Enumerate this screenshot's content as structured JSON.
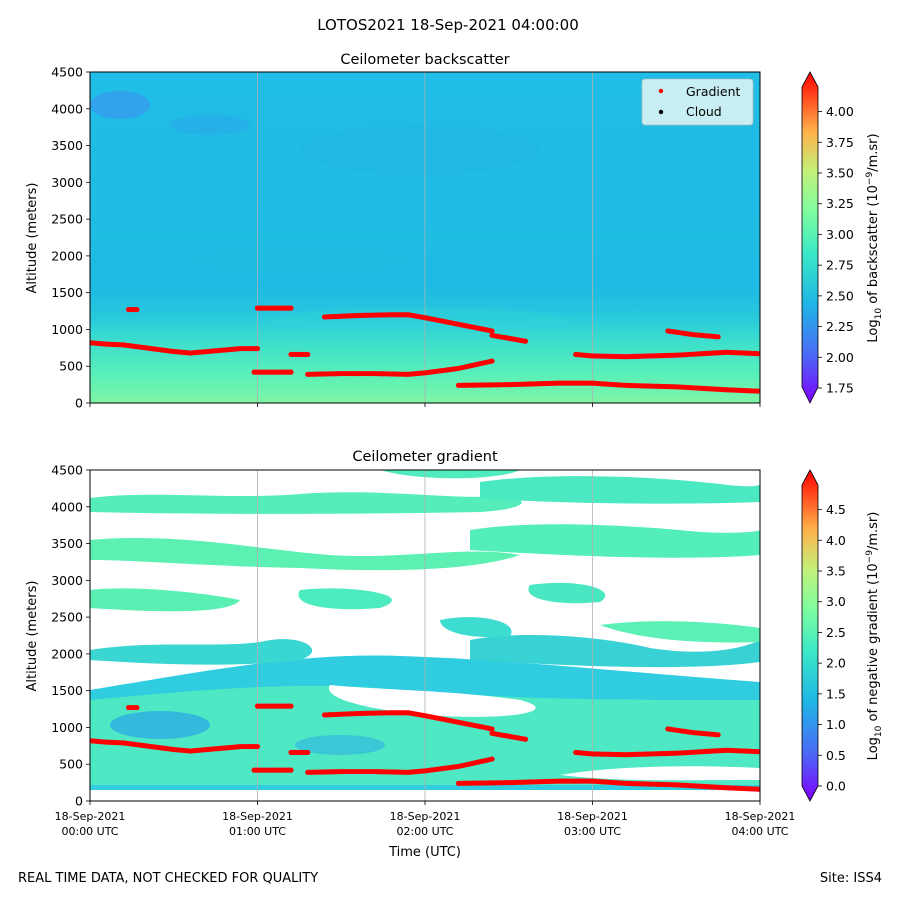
{
  "figure": {
    "title": "LOTOS2021 18-Sep-2021 04:00:00",
    "footer_left": "REAL TIME DATA, NOT CHECKED FOR QUALITY",
    "footer_right": "Site: ISS4"
  },
  "colors": {
    "cloud_points": "#ff0000",
    "field_low": "#2ac1e3",
    "field_high": "#5cf3b8",
    "grid": "#b0b0b0"
  },
  "chart_data": [
    {
      "type": "heatmap",
      "title": "Ceilometer backscatter",
      "xlabel": "",
      "ylabel": "Altitude (meters)",
      "xlim": [
        0,
        4
      ],
      "ylim": [
        0,
        4500
      ],
      "yticks": [
        0,
        500,
        1000,
        1500,
        2000,
        2500,
        3000,
        3500,
        4000,
        4500
      ],
      "grid_x": true,
      "legend": {
        "placement": "top-right",
        "entries": [
          {
            "label": "Gradient",
            "color": "#ff0000"
          },
          {
            "label": "Cloud",
            "color": "#000000"
          }
        ]
      },
      "colorbar": {
        "label_prefix": "Log",
        "label_sub": "10",
        "label_main": " of backscatter (10",
        "label_sup": "−9",
        "label_end": "/m.sr)",
        "min": 1.75,
        "max": 4.2,
        "ticks": [
          "1.75",
          "2.00",
          "2.25",
          "2.50",
          "2.75",
          "3.00",
          "3.25",
          "3.50",
          "3.75",
          "4.00"
        ]
      },
      "field_levels": [
        {
          "alt_from": 0,
          "alt_to": 500,
          "value": 2.9
        },
        {
          "alt_from": 500,
          "alt_to": 900,
          "value": 2.75
        },
        {
          "alt_from": 900,
          "alt_to": 1300,
          "value": 2.6
        },
        {
          "alt_from": 1300,
          "alt_to": 4500,
          "value": 2.45
        }
      ],
      "series": [
        {
          "name": "Gradient",
          "hours": [
            0.0,
            0.1,
            0.2,
            0.3,
            0.4,
            0.5,
            0.6,
            0.7,
            0.8,
            0.9,
            1.0
          ],
          "alts": [
            820,
            800,
            790,
            760,
            730,
            700,
            680,
            700,
            720,
            740,
            740
          ]
        },
        {
          "name": "Gradient",
          "hours": [
            0.23,
            0.28
          ],
          "alts": [
            1270,
            1270
          ]
        },
        {
          "name": "Gradient",
          "hours": [
            1.0,
            1.1,
            1.2
          ],
          "alts": [
            1290,
            1290,
            1290
          ]
        },
        {
          "name": "Gradient",
          "hours": [
            0.98,
            1.1,
            1.2
          ],
          "alts": [
            420,
            420,
            420
          ]
        },
        {
          "name": "Gradient",
          "hours": [
            1.2,
            1.3
          ],
          "alts": [
            660,
            660
          ]
        },
        {
          "name": "Gradient",
          "hours": [
            1.3,
            1.5,
            1.7,
            1.9,
            2.0,
            2.2,
            2.4
          ],
          "alts": [
            390,
            400,
            400,
            390,
            410,
            470,
            570
          ]
        },
        {
          "name": "Gradient",
          "hours": [
            1.4,
            1.6,
            1.8,
            1.9,
            2.0,
            2.2,
            2.4
          ],
          "alts": [
            1170,
            1190,
            1200,
            1200,
            1160,
            1070,
            980
          ]
        },
        {
          "name": "Gradient",
          "hours": [
            2.4,
            2.5,
            2.6
          ],
          "alts": [
            920,
            880,
            840
          ]
        },
        {
          "name": "Gradient",
          "hours": [
            2.2,
            2.5,
            2.8,
            3.0,
            3.2,
            3.5,
            3.8,
            4.0
          ],
          "alts": [
            240,
            250,
            270,
            270,
            240,
            220,
            180,
            160
          ]
        },
        {
          "name": "Gradient",
          "hours": [
            2.9,
            3.0,
            3.2,
            3.5,
            3.8,
            4.0
          ],
          "alts": [
            660,
            640,
            630,
            650,
            690,
            670
          ]
        },
        {
          "name": "Gradient",
          "hours": [
            3.45,
            3.6,
            3.75
          ],
          "alts": [
            980,
            930,
            900
          ]
        }
      ]
    },
    {
      "type": "heatmap",
      "title": "Ceilometer gradient",
      "xlabel": "Time (UTC)",
      "ylabel": "Altitude (meters)",
      "xlim": [
        0,
        4
      ],
      "ylim": [
        0,
        4500
      ],
      "yticks": [
        0,
        500,
        1000,
        1500,
        2000,
        2500,
        3000,
        3500,
        4000,
        4500
      ],
      "xtick_hours": [
        0,
        1,
        2,
        3,
        4
      ],
      "xticks_line1": [
        "18-Sep-2021",
        "18-Sep-2021",
        "18-Sep-2021",
        "18-Sep-2021",
        "18-Sep-2021"
      ],
      "xticks_line2": [
        "00:00 UTC",
        "01:00 UTC",
        "02:00 UTC",
        "03:00 UTC",
        "04:00 UTC"
      ],
      "grid_x": true,
      "colorbar": {
        "label_prefix": "Log",
        "label_sub": "10",
        "label_main": " of negative gradient (10",
        "label_sup": "−9",
        "label_end": "/m.sr)",
        "min": 0.0,
        "max": 4.9,
        "ticks": [
          "0.0",
          "0.5",
          "1.0",
          "1.5",
          "2.0",
          "2.5",
          "3.0",
          "3.5",
          "4.0",
          "4.5"
        ]
      },
      "field_bands": [
        {
          "alt_from": 150,
          "alt_to": 1900,
          "value": 1.8
        },
        {
          "alt_from": 2100,
          "alt_to": 2500,
          "value": 1.6
        },
        {
          "alt_from": 2700,
          "alt_to": 3300,
          "value": 1.7
        },
        {
          "alt_from": 3500,
          "alt_to": 4100,
          "value": 1.8
        }
      ],
      "series": "same_as_backscatter"
    }
  ]
}
